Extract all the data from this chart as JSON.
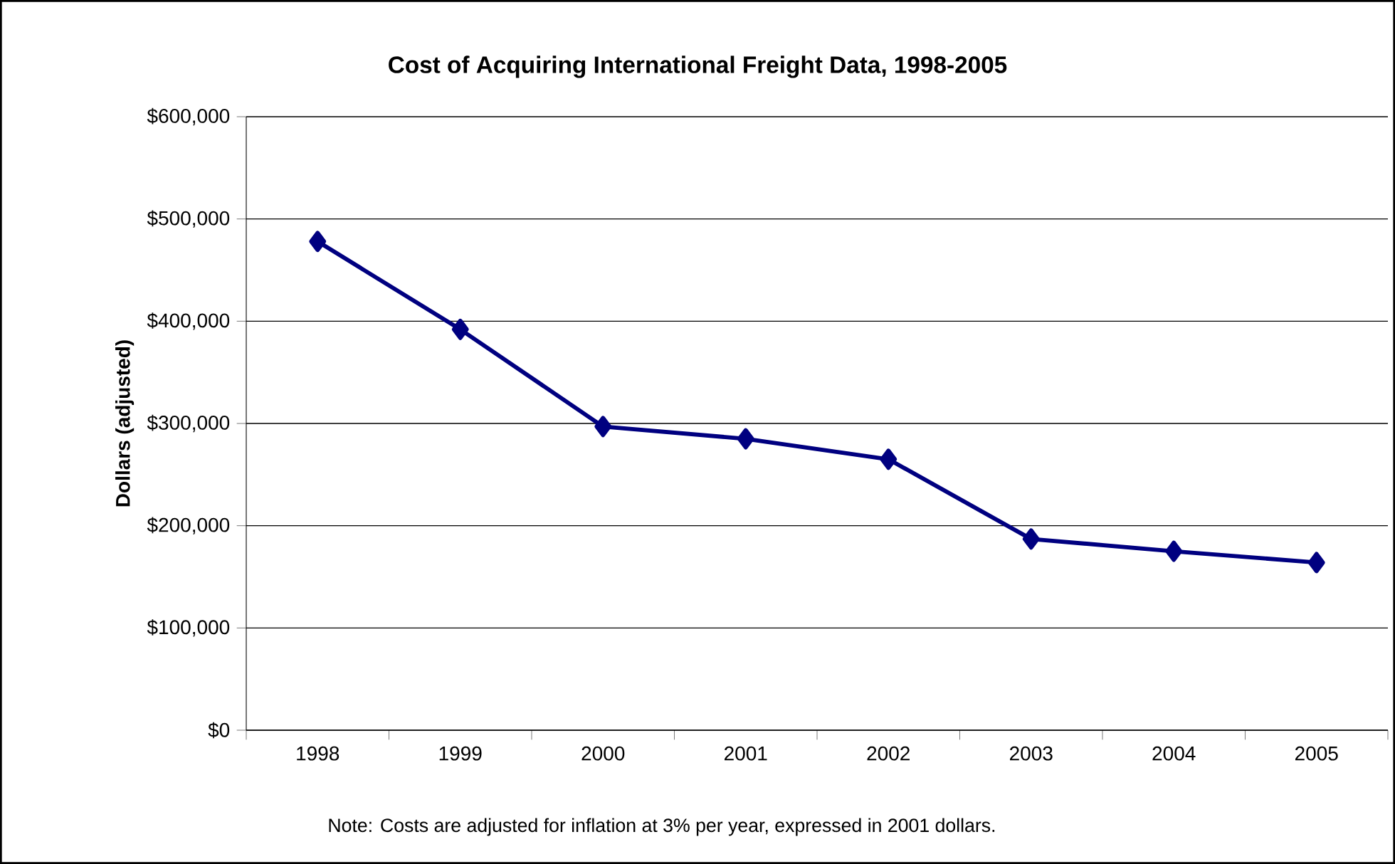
{
  "chart_data": {
    "type": "line",
    "title": "Cost of Acquiring International Freight Data, 1998-2005",
    "ylabel": "Dollars (adjusted)",
    "categories": [
      "1998",
      "1999",
      "2000",
      "2001",
      "2002",
      "2003",
      "2004",
      "2005"
    ],
    "series": [
      {
        "color": "#000080",
        "values": [
          478000,
          392000,
          297000,
          285000,
          265000,
          187000,
          175000,
          164000
        ]
      }
    ],
    "ylim": [
      0,
      600000
    ],
    "yticks": [
      {
        "value": 0,
        "label": "$0"
      },
      {
        "value": 100000,
        "label": "$100,000"
      },
      {
        "value": 200000,
        "label": "$200,000"
      },
      {
        "value": 300000,
        "label": "$300,000"
      },
      {
        "value": 400000,
        "label": "$400,000"
      },
      {
        "value": 500000,
        "label": "$500,000"
      },
      {
        "value": 600000,
        "label": "$600,000"
      }
    ],
    "grid": "y",
    "marker": "diamond",
    "line_style": "solid",
    "annotations": [
      "Note: Costs are adjusted for inflation at 3% per year, expressed in 2001 dollars."
    ]
  }
}
